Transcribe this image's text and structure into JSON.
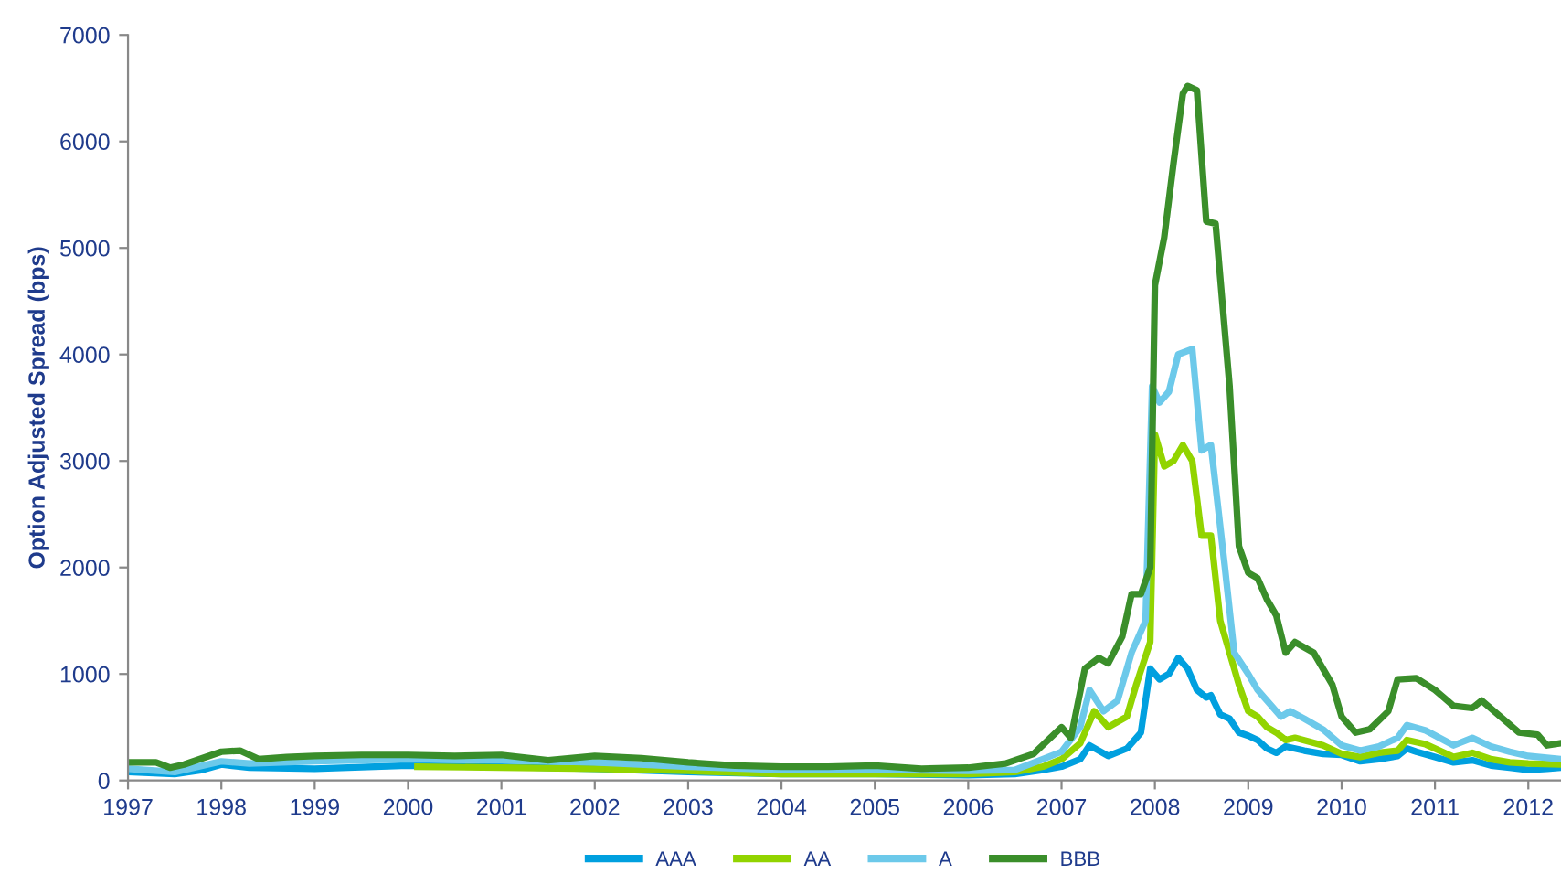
{
  "chart_data": {
    "type": "line",
    "ylabel": "Option Adjusted Spread (bps)",
    "xlim": [
      1997,
      2012.35
    ],
    "xticks": [
      1997,
      1998,
      1999,
      2000,
      2001,
      2002,
      2003,
      2004,
      2005,
      2006,
      2007,
      2008,
      2009,
      2010,
      2011,
      2012
    ],
    "ylim": [
      0,
      7000
    ],
    "yticks": [
      0,
      1000,
      2000,
      3000,
      4000,
      5000,
      6000,
      7000
    ],
    "grid": false,
    "legend": "bottom",
    "marker": "none",
    "line_style": "solid",
    "series": [
      {
        "name": "AAA",
        "color": "#00a0df",
        "x": [
          1997,
          1997.5,
          1997.8,
          1998,
          1998.3,
          1999,
          2000,
          2001,
          2002,
          2003,
          2004,
          2005,
          2006,
          2006.5,
          2006.8,
          2007,
          2007.2,
          2007.3,
          2007.5,
          2007.7,
          2007.85,
          2007.95,
          2008.05,
          2008.15,
          2008.25,
          2008.35,
          2008.45,
          2008.55,
          2008.6,
          2008.7,
          2008.8,
          2008.9,
          2009,
          2009.1,
          2009.2,
          2009.3,
          2009.4,
          2009.6,
          2009.8,
          2010,
          2010.2,
          2010.4,
          2010.6,
          2010.7,
          2010.8,
          2011,
          2011.2,
          2011.4,
          2011.6,
          2011.8,
          2012,
          2012.2,
          2012.35
        ],
        "values": [
          80,
          60,
          100,
          150,
          120,
          110,
          140,
          130,
          110,
          80,
          60,
          60,
          50,
          60,
          100,
          130,
          200,
          330,
          230,
          300,
          450,
          1050,
          950,
          1000,
          1150,
          1050,
          850,
          780,
          800,
          620,
          580,
          450,
          420,
          380,
          300,
          260,
          320,
          280,
          250,
          240,
          180,
          200,
          230,
          300,
          270,
          220,
          170,
          190,
          140,
          120,
          100,
          110,
          120
        ]
      },
      {
        "name": "AA",
        "color": "#92d400",
        "x": [
          2000.1,
          2001,
          2002,
          2003,
          2004,
          2005,
          2006,
          2006.5,
          2006.8,
          2007,
          2007.2,
          2007.35,
          2007.5,
          2007.7,
          2007.8,
          2007.95,
          2008.0,
          2008.1,
          2008.2,
          2008.3,
          2008.4,
          2008.5,
          2008.6,
          2008.7,
          2008.9,
          2009,
          2009.1,
          2009.2,
          2009.3,
          2009.4,
          2009.5,
          2009.8,
          2010,
          2010.2,
          2010.4,
          2010.6,
          2010.7,
          2010.9,
          2011.2,
          2011.4,
          2011.6,
          2011.8,
          2012,
          2012.35
        ],
        "values": [
          130,
          120,
          110,
          90,
          60,
          60,
          60,
          80,
          130,
          200,
          350,
          650,
          500,
          600,
          900,
          1300,
          3250,
          2950,
          3000,
          3150,
          3000,
          2300,
          2300,
          1500,
          900,
          650,
          600,
          500,
          450,
          380,
          400,
          330,
          250,
          220,
          260,
          280,
          380,
          340,
          220,
          260,
          200,
          170,
          160,
          150
        ]
      },
      {
        "name": "A",
        "color": "#6cc9ea",
        "x": [
          1997,
          1997.5,
          1998,
          1998.3,
          1999,
          2000,
          2001,
          2002,
          2003,
          2004,
          2005,
          2006,
          2006.5,
          2006.8,
          2007,
          2007.2,
          2007.3,
          2007.45,
          2007.6,
          2007.75,
          2007.9,
          2007.97,
          2008.05,
          2008.15,
          2008.25,
          2008.4,
          2008.5,
          2008.6,
          2008.75,
          2008.85,
          2009,
          2009.1,
          2009.25,
          2009.35,
          2009.45,
          2009.6,
          2009.8,
          2010,
          2010.2,
          2010.4,
          2010.6,
          2010.7,
          2010.9,
          2011.2,
          2011.4,
          2011.6,
          2011.8,
          2012,
          2012.35
        ],
        "values": [
          110,
          80,
          180,
          160,
          180,
          200,
          190,
          170,
          130,
          100,
          100,
          90,
          100,
          200,
          270,
          500,
          850,
          650,
          750,
          1200,
          1500,
          3700,
          3550,
          3650,
          4000,
          4050,
          3100,
          3150,
          2000,
          1200,
          1000,
          850,
          700,
          600,
          650,
          580,
          480,
          330,
          280,
          320,
          400,
          520,
          470,
          330,
          400,
          320,
          270,
          230,
          200
        ]
      },
      {
        "name": "BBB",
        "color": "#3a8e2a",
        "x": [
          1997,
          1997.3,
          1997.45,
          1997.6,
          1998,
          1998.2,
          1998.4,
          1998.7,
          1999,
          1999.5,
          2000,
          2000.5,
          2001,
          2001.5,
          2002,
          2002.5,
          2003,
          2003.5,
          2004,
          2004.5,
          2005,
          2005.5,
          2006,
          2006.4,
          2006.7,
          2007,
          2007.1,
          2007.25,
          2007.4,
          2007.5,
          2007.65,
          2007.75,
          2007.85,
          2007.95,
          2008.0,
          2008.1,
          2008.2,
          2008.3,
          2008.35,
          2008.45,
          2008.55,
          2008.65,
          2008.8,
          2008.9,
          2009.0,
          2009.1,
          2009.2,
          2009.3,
          2009.4,
          2009.5,
          2009.7,
          2009.9,
          2010.0,
          2010.15,
          2010.3,
          2010.5,
          2010.6,
          2010.8,
          2011.0,
          2011.2,
          2011.4,
          2011.5,
          2011.7,
          2011.9,
          2012.1,
          2012.2,
          2012.35
        ],
        "values": [
          170,
          170,
          120,
          150,
          270,
          280,
          200,
          220,
          230,
          240,
          240,
          230,
          240,
          190,
          230,
          210,
          170,
          140,
          130,
          130,
          140,
          110,
          120,
          160,
          250,
          500,
          400,
          1050,
          1150,
          1100,
          1350,
          1750,
          1750,
          2000,
          4650,
          5100,
          5800,
          6450,
          6520,
          6480,
          5250,
          5230,
          3700,
          2200,
          1950,
          1900,
          1700,
          1550,
          1200,
          1300,
          1200,
          900,
          600,
          450,
          480,
          650,
          950,
          960,
          850,
          700,
          680,
          750,
          600,
          450,
          430,
          330,
          350
        ]
      }
    ]
  }
}
